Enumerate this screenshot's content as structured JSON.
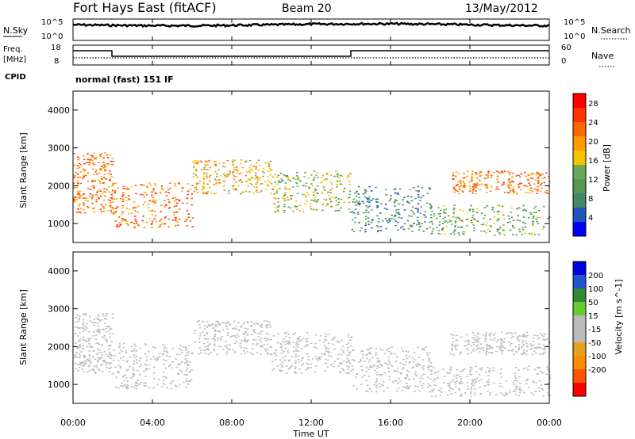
{
  "header": {
    "station": "Fort Hays East (fitACF)",
    "beam": "Beam 20",
    "date": "13/May/2012"
  },
  "noise_panel": {
    "left_label": "N.Sky",
    "right_label": "N.Search",
    "left_ticks": [
      "10^5",
      "10^0"
    ],
    "right_ticks": [
      "10^5",
      "10^0"
    ]
  },
  "freq_panel": {
    "left_label_line1": "Freq.",
    "left_label_line2": "[MHz]",
    "right_label": "Nave",
    "left_ticks": [
      "18",
      "8"
    ],
    "right_ticks": [
      "60",
      "0"
    ],
    "cpid_label": "CPID",
    "cpid_text": "normal (fast) 151 IF"
  },
  "colors": {
    "power_scale": [
      "#0000ff",
      "#2255bb",
      "#448866",
      "#559955",
      "#66aa55",
      "#f5c400",
      "#ff9900",
      "#ff6600",
      "#ff3300",
      "#ff0000"
    ],
    "velocity_scale": [
      "#ff0000",
      "#ff5500",
      "#ff8c00",
      "#e8a020",
      "#bbbbbb",
      "#bbbbbb",
      "#66cc33",
      "#338833",
      "#2255cc",
      "#0000dd"
    ]
  },
  "chart_data": [
    {
      "type": "heatmap",
      "name": "power",
      "ylabel": "Slant Range [km]",
      "yticks": [
        "1000",
        "2000",
        "3000",
        "4000"
      ],
      "ylim": [
        500,
        4500
      ],
      "colorbar_label": "Power [dB]",
      "colorbar_ticks": [
        "4",
        "8",
        "12",
        "16",
        "20",
        "24",
        "28"
      ],
      "colorbar_range": [
        0,
        30
      ],
      "scatter_bands": [
        {
          "t": [
            0,
            2
          ],
          "r": [
            1300,
            2900
          ],
          "level": 22
        },
        {
          "t": [
            2,
            6
          ],
          "r": [
            900,
            2100
          ],
          "level": 22
        },
        {
          "t": [
            6,
            10
          ],
          "r": [
            1800,
            2700
          ],
          "level": 18
        },
        {
          "t": [
            10,
            14
          ],
          "r": [
            1300,
            2400
          ],
          "level": 14
        },
        {
          "t": [
            14,
            18
          ],
          "r": [
            800,
            2000
          ],
          "level": 8
        },
        {
          "t": [
            18,
            24
          ],
          "r": [
            700,
            1500
          ],
          "level": 12
        },
        {
          "t": [
            19,
            24
          ],
          "r": [
            1800,
            2400
          ],
          "level": 22
        }
      ]
    },
    {
      "type": "heatmap",
      "name": "velocity",
      "ylabel": "Slant Range [km]",
      "yticks": [
        "1000",
        "2000",
        "3000",
        "4000"
      ],
      "ylim": [
        500,
        4500
      ],
      "colorbar_label": "Velocity [m s^-1]",
      "colorbar_ticks": [
        "200",
        "100",
        "50",
        "15",
        "-15",
        "-50",
        "-100",
        "-200"
      ],
      "colorbar_range": [
        -250,
        250
      ],
      "scatter_bands": [
        {
          "t": [
            0,
            2
          ],
          "r": [
            1300,
            2900
          ],
          "level": -20
        },
        {
          "t": [
            2,
            6
          ],
          "r": [
            900,
            2100
          ],
          "level": -5
        },
        {
          "t": [
            6,
            10
          ],
          "r": [
            1800,
            2700
          ],
          "level": 0
        },
        {
          "t": [
            10,
            14
          ],
          "r": [
            1300,
            2400
          ],
          "level": 0
        },
        {
          "t": [
            14,
            18
          ],
          "r": [
            800,
            2000
          ],
          "level": 0
        },
        {
          "t": [
            18,
            24
          ],
          "r": [
            700,
            1500
          ],
          "level": 0
        },
        {
          "t": [
            19,
            24
          ],
          "r": [
            1800,
            2400
          ],
          "level": 0
        }
      ]
    }
  ],
  "time_axis": {
    "label": "Time UT",
    "ticks": [
      "00:00",
      "04:00",
      "08:00",
      "12:00",
      "16:00",
      "20:00",
      "00:00"
    ],
    "range_hours": [
      0,
      24
    ]
  }
}
